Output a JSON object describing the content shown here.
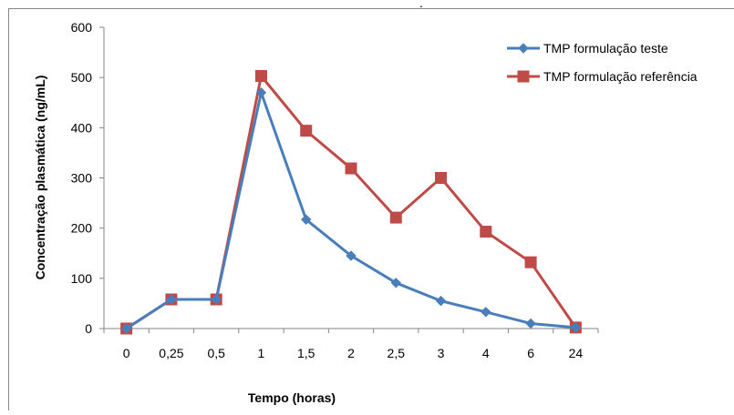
{
  "chart_data": {
    "type": "line",
    "title": ".",
    "xlabel": "Tempo (horas)",
    "ylabel": "Concentração plasmática (ng/mL)",
    "categories": [
      "0",
      "0,25",
      "0,5",
      "1",
      "1,5",
      "2",
      "2,5",
      "3",
      "4",
      "6",
      "24"
    ],
    "ylim": [
      0,
      600
    ],
    "yticks": [
      0,
      100,
      200,
      300,
      400,
      500,
      600
    ],
    "grid": false,
    "legend_position": "top-right",
    "series": [
      {
        "name": "TMP formulação teste",
        "color": "#4a7ebb",
        "marker": "diamond",
        "values": [
          0,
          58,
          58,
          470,
          217,
          145,
          91,
          55,
          33,
          10,
          2
        ]
      },
      {
        "name": "TMP formulação referência",
        "color": "#be4b48",
        "marker": "square",
        "values": [
          0,
          58,
          58,
          503,
          394,
          319,
          221,
          300,
          193,
          132,
          2
        ]
      }
    ]
  }
}
